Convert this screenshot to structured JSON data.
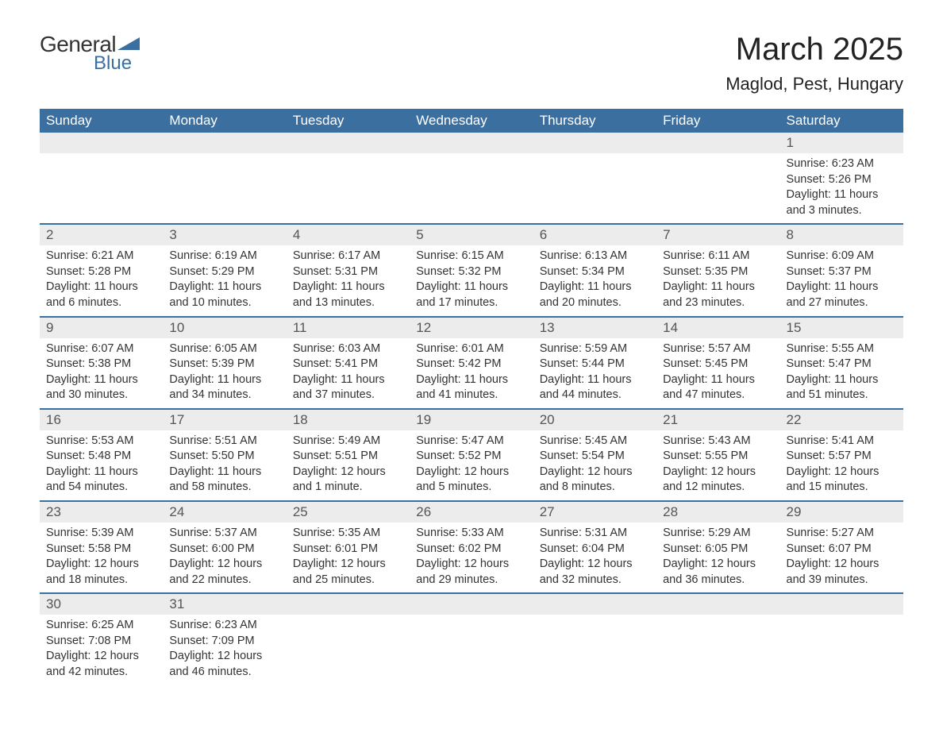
{
  "logo": {
    "text1": "General",
    "text2": "Blue",
    "shape_color": "#3b6fa0"
  },
  "title": "March 2025",
  "location": "Maglod, Pest, Hungary",
  "title_color": "#222222",
  "header_bg": "#3b6fa0",
  "header_fg": "#ffffff",
  "daynum_bg": "#ececec",
  "row_border_color": "#3b6fa0",
  "body_text_color": "#333333",
  "font_family": "Arial, Helvetica, sans-serif",
  "day_headers": [
    "Sunday",
    "Monday",
    "Tuesday",
    "Wednesday",
    "Thursday",
    "Friday",
    "Saturday"
  ],
  "weeks": [
    [
      null,
      null,
      null,
      null,
      null,
      null,
      {
        "n": "1",
        "sunrise": "Sunrise: 6:23 AM",
        "sunset": "Sunset: 5:26 PM",
        "daylight": "Daylight: 11 hours and 3 minutes."
      }
    ],
    [
      {
        "n": "2",
        "sunrise": "Sunrise: 6:21 AM",
        "sunset": "Sunset: 5:28 PM",
        "daylight": "Daylight: 11 hours and 6 minutes."
      },
      {
        "n": "3",
        "sunrise": "Sunrise: 6:19 AM",
        "sunset": "Sunset: 5:29 PM",
        "daylight": "Daylight: 11 hours and 10 minutes."
      },
      {
        "n": "4",
        "sunrise": "Sunrise: 6:17 AM",
        "sunset": "Sunset: 5:31 PM",
        "daylight": "Daylight: 11 hours and 13 minutes."
      },
      {
        "n": "5",
        "sunrise": "Sunrise: 6:15 AM",
        "sunset": "Sunset: 5:32 PM",
        "daylight": "Daylight: 11 hours and 17 minutes."
      },
      {
        "n": "6",
        "sunrise": "Sunrise: 6:13 AM",
        "sunset": "Sunset: 5:34 PM",
        "daylight": "Daylight: 11 hours and 20 minutes."
      },
      {
        "n": "7",
        "sunrise": "Sunrise: 6:11 AM",
        "sunset": "Sunset: 5:35 PM",
        "daylight": "Daylight: 11 hours and 23 minutes."
      },
      {
        "n": "8",
        "sunrise": "Sunrise: 6:09 AM",
        "sunset": "Sunset: 5:37 PM",
        "daylight": "Daylight: 11 hours and 27 minutes."
      }
    ],
    [
      {
        "n": "9",
        "sunrise": "Sunrise: 6:07 AM",
        "sunset": "Sunset: 5:38 PM",
        "daylight": "Daylight: 11 hours and 30 minutes."
      },
      {
        "n": "10",
        "sunrise": "Sunrise: 6:05 AM",
        "sunset": "Sunset: 5:39 PM",
        "daylight": "Daylight: 11 hours and 34 minutes."
      },
      {
        "n": "11",
        "sunrise": "Sunrise: 6:03 AM",
        "sunset": "Sunset: 5:41 PM",
        "daylight": "Daylight: 11 hours and 37 minutes."
      },
      {
        "n": "12",
        "sunrise": "Sunrise: 6:01 AM",
        "sunset": "Sunset: 5:42 PM",
        "daylight": "Daylight: 11 hours and 41 minutes."
      },
      {
        "n": "13",
        "sunrise": "Sunrise: 5:59 AM",
        "sunset": "Sunset: 5:44 PM",
        "daylight": "Daylight: 11 hours and 44 minutes."
      },
      {
        "n": "14",
        "sunrise": "Sunrise: 5:57 AM",
        "sunset": "Sunset: 5:45 PM",
        "daylight": "Daylight: 11 hours and 47 minutes."
      },
      {
        "n": "15",
        "sunrise": "Sunrise: 5:55 AM",
        "sunset": "Sunset: 5:47 PM",
        "daylight": "Daylight: 11 hours and 51 minutes."
      }
    ],
    [
      {
        "n": "16",
        "sunrise": "Sunrise: 5:53 AM",
        "sunset": "Sunset: 5:48 PM",
        "daylight": "Daylight: 11 hours and 54 minutes."
      },
      {
        "n": "17",
        "sunrise": "Sunrise: 5:51 AM",
        "sunset": "Sunset: 5:50 PM",
        "daylight": "Daylight: 11 hours and 58 minutes."
      },
      {
        "n": "18",
        "sunrise": "Sunrise: 5:49 AM",
        "sunset": "Sunset: 5:51 PM",
        "daylight": "Daylight: 12 hours and 1 minute."
      },
      {
        "n": "19",
        "sunrise": "Sunrise: 5:47 AM",
        "sunset": "Sunset: 5:52 PM",
        "daylight": "Daylight: 12 hours and 5 minutes."
      },
      {
        "n": "20",
        "sunrise": "Sunrise: 5:45 AM",
        "sunset": "Sunset: 5:54 PM",
        "daylight": "Daylight: 12 hours and 8 minutes."
      },
      {
        "n": "21",
        "sunrise": "Sunrise: 5:43 AM",
        "sunset": "Sunset: 5:55 PM",
        "daylight": "Daylight: 12 hours and 12 minutes."
      },
      {
        "n": "22",
        "sunrise": "Sunrise: 5:41 AM",
        "sunset": "Sunset: 5:57 PM",
        "daylight": "Daylight: 12 hours and 15 minutes."
      }
    ],
    [
      {
        "n": "23",
        "sunrise": "Sunrise: 5:39 AM",
        "sunset": "Sunset: 5:58 PM",
        "daylight": "Daylight: 12 hours and 18 minutes."
      },
      {
        "n": "24",
        "sunrise": "Sunrise: 5:37 AM",
        "sunset": "Sunset: 6:00 PM",
        "daylight": "Daylight: 12 hours and 22 minutes."
      },
      {
        "n": "25",
        "sunrise": "Sunrise: 5:35 AM",
        "sunset": "Sunset: 6:01 PM",
        "daylight": "Daylight: 12 hours and 25 minutes."
      },
      {
        "n": "26",
        "sunrise": "Sunrise: 5:33 AM",
        "sunset": "Sunset: 6:02 PM",
        "daylight": "Daylight: 12 hours and 29 minutes."
      },
      {
        "n": "27",
        "sunrise": "Sunrise: 5:31 AM",
        "sunset": "Sunset: 6:04 PM",
        "daylight": "Daylight: 12 hours and 32 minutes."
      },
      {
        "n": "28",
        "sunrise": "Sunrise: 5:29 AM",
        "sunset": "Sunset: 6:05 PM",
        "daylight": "Daylight: 12 hours and 36 minutes."
      },
      {
        "n": "29",
        "sunrise": "Sunrise: 5:27 AM",
        "sunset": "Sunset: 6:07 PM",
        "daylight": "Daylight: 12 hours and 39 minutes."
      }
    ],
    [
      {
        "n": "30",
        "sunrise": "Sunrise: 6:25 AM",
        "sunset": "Sunset: 7:08 PM",
        "daylight": "Daylight: 12 hours and 42 minutes."
      },
      {
        "n": "31",
        "sunrise": "Sunrise: 6:23 AM",
        "sunset": "Sunset: 7:09 PM",
        "daylight": "Daylight: 12 hours and 46 minutes."
      },
      null,
      null,
      null,
      null,
      null
    ]
  ]
}
